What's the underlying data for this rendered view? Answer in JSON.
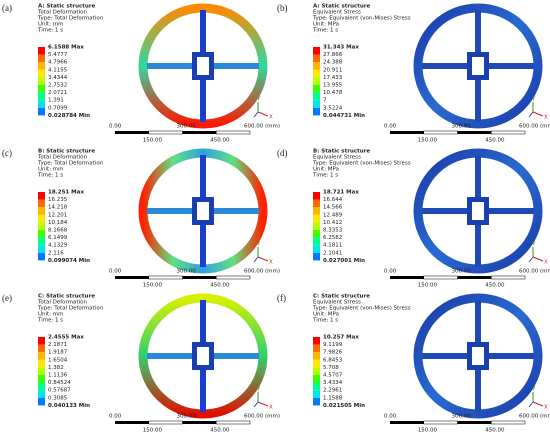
{
  "panels": [
    {
      "label": "(a)",
      "lines": [
        "A: Static structure",
        "Total Deformation",
        "Type: Total Deformation",
        "Unit: mm",
        "Time: 1 s"
      ],
      "legend": [
        "6.1588 Max",
        "5.4777",
        "4.7966",
        "4.1155",
        "3.4344",
        "2.7532",
        "2.0721",
        "1.391",
        "0.7099",
        "0.028784 Min"
      ]
    },
    {
      "label": "(b)",
      "lines": [
        "A: Static structure",
        "Equivalent Stress",
        "Type: Equivalent (von-Mises) Stress",
        "Unit: MPa",
        "Time: 1 s"
      ],
      "legend": [
        "31.343 Max",
        "27.866",
        "24.388",
        "20.911",
        "17.433",
        "13.955",
        "10.478",
        "7",
        "3.5224",
        "0.044731 Min"
      ]
    },
    {
      "label": "(c)",
      "lines": [
        "B: Static structure",
        "Total Deformation",
        "Type: Total Deformation",
        "Unit: mm",
        "Time: 1 s"
      ],
      "legend": [
        "18.251 Max",
        "16.235",
        "14.218",
        "12.201",
        "10.184",
        "8.1668",
        "6.1499",
        "4.1329",
        "2.116",
        "0.099074 Min"
      ]
    },
    {
      "label": "(d)",
      "lines": [
        "B: Static structure",
        "Equivalent Stress",
        "Type: Equivalent (von-Mises) Stress",
        "Unit: MPa",
        "Time: 1 s"
      ],
      "legend": [
        "18.721 Max",
        "16.644",
        "14.566",
        "12.489",
        "10.412",
        "8.3353",
        "6.2582",
        "4.1811",
        "2.1041",
        "0.027001 Min"
      ]
    },
    {
      "label": "(e)",
      "lines": [
        "C: Static structure",
        "Total Deformation",
        "Type: Total Deformation",
        "Unit: mm",
        "Time: 1 s"
      ],
      "legend": [
        "2.4555 Max",
        "2.1871",
        "1.9187",
        "1.6504",
        "1.382",
        "1.1136",
        "0.84524",
        "0.57687",
        "0.3085",
        "0.040133 Min"
      ]
    },
    {
      "label": "(f)",
      "lines": [
        "C: Static structure",
        "Equivalent Stress",
        "Type: Equivalent (von-Mises) Stress",
        "Unit: MPa",
        "Time: 1 s"
      ],
      "legend": [
        "10.257 Max",
        "9.1199",
        "7.9826",
        "6.8453",
        "5.708",
        "4.5707",
        "3.4334",
        "2.2961",
        "1.1588",
        "0.021505 Min"
      ]
    }
  ],
  "scale": {
    "top": [
      "0.00",
      "300.00",
      "600.00 (mm)"
    ],
    "bottom": [
      "150.00",
      "450.00"
    ]
  },
  "axes": [
    "Y",
    "X"
  ]
}
